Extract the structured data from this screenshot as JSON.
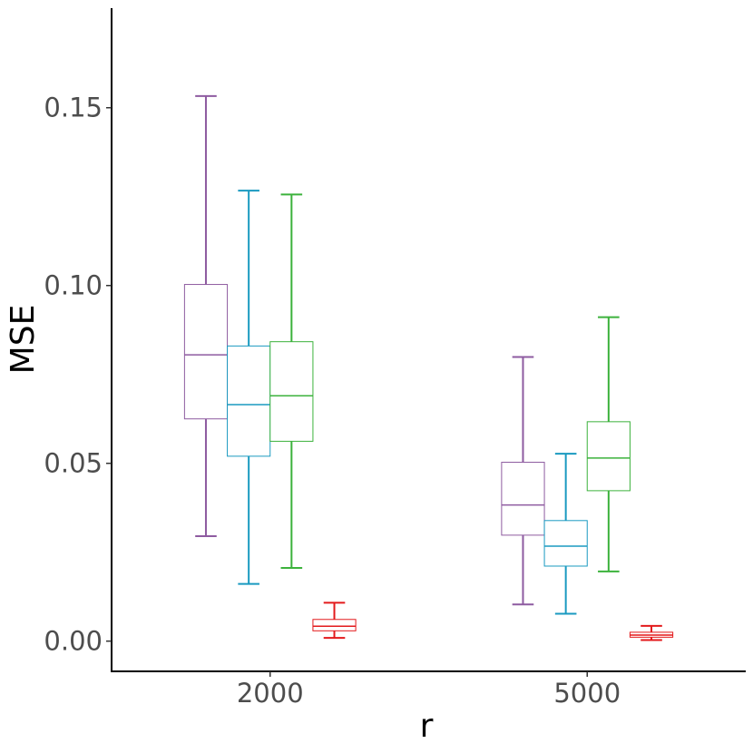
{
  "chart_data": {
    "type": "boxplot",
    "xlabel": "r",
    "ylabel": "MSE",
    "categories": [
      "2000",
      "5000"
    ],
    "yticks": [
      "0.00",
      "0.05",
      "0.10",
      "0.15"
    ],
    "ytick_values": [
      0.0,
      0.05,
      0.1,
      0.15
    ],
    "ylim": [
      -0.0085,
      0.178
    ],
    "grid": false,
    "legend": "none",
    "series": [
      {
        "color": "#8e5ba0",
        "boxes": [
          {
            "category": "2000",
            "min": 0.0295,
            "q1": 0.0625,
            "median": 0.0805,
            "q3": 0.1003,
            "max": 0.1533
          },
          {
            "category": "5000",
            "min": 0.0103,
            "q1": 0.0298,
            "median": 0.0383,
            "q3": 0.0503,
            "max": 0.0799
          }
        ]
      },
      {
        "color": "#1a9ac0",
        "boxes": [
          {
            "category": "2000",
            "min": 0.0161,
            "q1": 0.052,
            "median": 0.0665,
            "q3": 0.083,
            "max": 0.1267
          },
          {
            "category": "5000",
            "min": 0.0077,
            "q1": 0.0211,
            "median": 0.0267,
            "q3": 0.0339,
            "max": 0.0527
          }
        ]
      },
      {
        "color": "#3cb23c",
        "boxes": [
          {
            "category": "2000",
            "min": 0.0206,
            "q1": 0.0562,
            "median": 0.069,
            "q3": 0.0842,
            "max": 0.1256
          },
          {
            "category": "5000",
            "min": 0.0196,
            "q1": 0.0423,
            "median": 0.0515,
            "q3": 0.0617,
            "max": 0.0911
          }
        ]
      },
      {
        "color": "#e31a1c",
        "boxes": [
          {
            "category": "2000",
            "min": 0.0009,
            "q1": 0.0029,
            "median": 0.0042,
            "q3": 0.0061,
            "max": 0.0108
          },
          {
            "category": "5000",
            "min": 0.0003,
            "q1": 0.0011,
            "median": 0.0017,
            "q3": 0.0025,
            "max": 0.0043
          }
        ]
      }
    ]
  }
}
